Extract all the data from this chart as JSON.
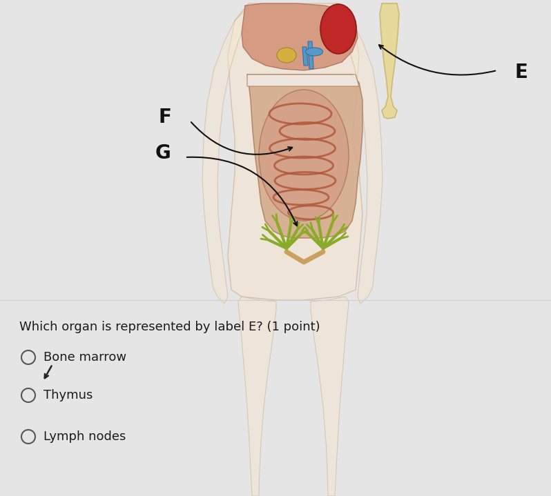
{
  "bg_color": "#e5e5e5",
  "question_text": "Which organ is represented by label E? (1 point)",
  "options": [
    "Bone marrow",
    "Thymus",
    "Lymph nodes"
  ],
  "question_fontsize": 13.0,
  "option_fontsize": 13.0,
  "label_fontsize": 20,
  "text_color": "#1a1a1a",
  "label_color": "#111111",
  "circle_color": "#555555",
  "body_skin": "#f5e6d0",
  "body_outline": "#c8aa88",
  "bone_fill": "#e8d898",
  "bone_edge": "#c8b870",
  "liver_fill": "#d4937a",
  "intestine_bg": "#e8c4a8",
  "intestine_line": "#b05838",
  "kidney_fill": "#c02828",
  "kidney_edge": "#901818",
  "blue_fill": "#5898c8",
  "yellow_fill": "#d4b040",
  "green_fill": "#8aaa28",
  "white_fill": "#f0ede8",
  "colon_fill": "#d4a888",
  "colon_edge": "#b08060"
}
